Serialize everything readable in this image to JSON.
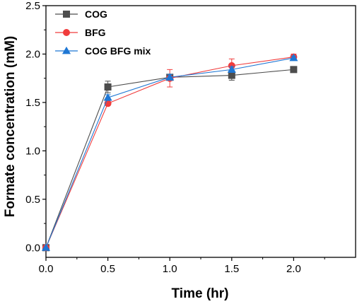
{
  "chart_data": {
    "type": "line",
    "xlabel": "Time (hr)",
    "ylabel": "Formate concentration (mM)",
    "xlim": [
      0.0,
      2.5
    ],
    "ylim": [
      -0.1,
      2.5
    ],
    "x_ticks": [
      "0.0",
      "0.5",
      "1.0",
      "1.5",
      "2.0"
    ],
    "y_ticks": [
      "0.0",
      "0.5",
      "1.0",
      "1.5",
      "2.0",
      "2.5"
    ],
    "grid": false,
    "legend_position": "top-left",
    "x": [
      0.0,
      0.5,
      1.0,
      1.5,
      2.0
    ],
    "series": [
      {
        "name": "COG",
        "values": [
          0.0,
          1.66,
          1.76,
          1.78,
          1.84
        ],
        "error": [
          0.0,
          0.06,
          0.02,
          0.05,
          0.02
        ],
        "color": "#4d4d4d",
        "marker": "square"
      },
      {
        "name": "BFG",
        "values": [
          0.0,
          1.49,
          1.75,
          1.88,
          1.97
        ],
        "error": [
          0.0,
          0.02,
          0.09,
          0.07,
          0.03
        ],
        "color": "#f03c3c",
        "marker": "circle"
      },
      {
        "name": "COG BFG mix",
        "values": [
          0.0,
          1.55,
          1.76,
          1.84,
          1.96
        ],
        "error": [
          0.0,
          0.03,
          0.03,
          0.03,
          0.02
        ],
        "color": "#1f77d4",
        "marker": "triangle"
      }
    ]
  }
}
